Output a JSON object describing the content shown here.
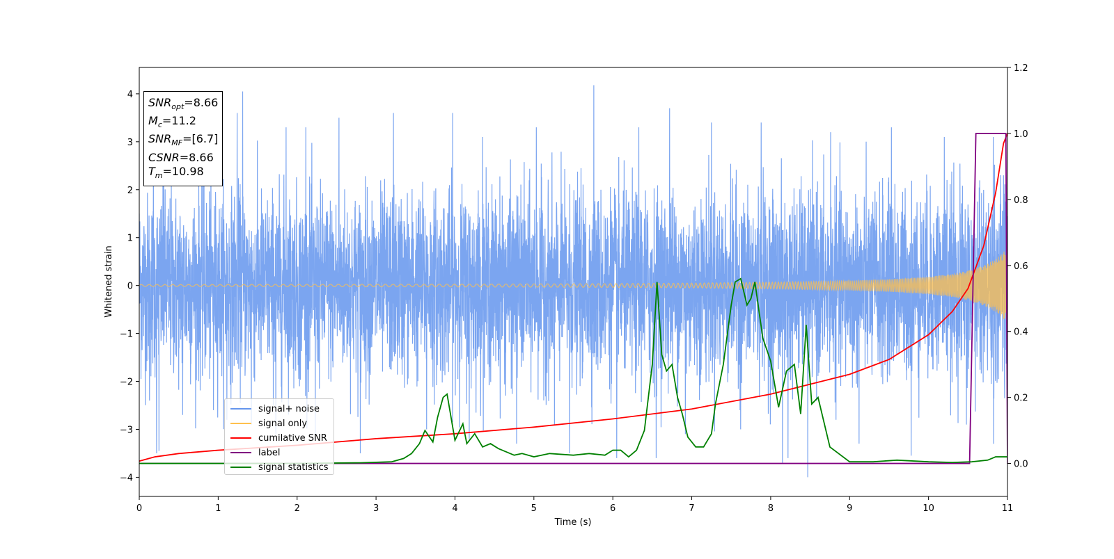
{
  "info_box": {
    "snr_opt": {
      "sym": "SNR",
      "sub": "opt",
      "val": "=8.66"
    },
    "mc": {
      "sym": "M",
      "sub": "c",
      "val": "=11.2"
    },
    "snr_mf": {
      "sym": "SNR",
      "sub": "MF",
      "val": "=[6.7]"
    },
    "csnr": {
      "sym": "CSNR",
      "val": "=8.66"
    },
    "tm": {
      "sym": "T",
      "sub": "m",
      "val": "=10.98"
    }
  },
  "legend": {
    "items": [
      {
        "label": "signal+ noise",
        "color": "#6495ed"
      },
      {
        "label": "signal only",
        "color": "#ffc04d"
      },
      {
        "label": "cumilative SNR",
        "color": "#ff0000"
      },
      {
        "label": "label",
        "color": "#800080"
      },
      {
        "label": "signal statistics",
        "color": "#008000"
      }
    ]
  },
  "chart_data": {
    "type": "line",
    "xlabel": "Time (s)",
    "ylabel": "Whitened strain",
    "xlim": [
      0,
      11
    ],
    "ylim": [
      -4.4,
      4.55
    ],
    "y2lim": [
      -0.1,
      1.2
    ],
    "xticks": [
      "0",
      "1",
      "2",
      "3",
      "4",
      "5",
      "6",
      "7",
      "8",
      "9",
      "10",
      "11"
    ],
    "yticks": [
      "4",
      "3",
      "2",
      "1",
      "0",
      "−1",
      "−2",
      "−3",
      "−4"
    ],
    "y2ticks": [
      "1.2",
      "1.0",
      "0.8",
      "0.6",
      "0.4",
      "0.2",
      "0.0"
    ],
    "grid": false,
    "legend_position": "lower-left",
    "series": [
      {
        "name": "signal+ noise",
        "axis": "left",
        "color": "#6495ed",
        "description_stats": {
          "mean": 0,
          "std": 1.0,
          "max": 4.18,
          "min": -4.0,
          "n": 5500
        },
        "x": [
          0.0,
          0.13,
          0.18,
          0.22,
          0.25,
          0.31,
          0.55,
          0.82,
          0.94,
          1.11,
          1.24,
          1.31,
          1.42,
          1.73,
          1.86,
          2.03,
          2.11,
          2.23,
          2.53,
          2.8,
          3.22,
          3.64,
          3.97,
          4.18,
          4.35,
          4.78,
          5.03,
          5.26,
          5.45,
          5.76,
          6.05,
          6.33,
          6.55,
          6.72,
          6.92,
          7.25,
          7.62,
          7.88,
          8.15,
          8.22,
          8.47,
          8.76,
          9.12,
          9.53,
          9.78,
          10.2,
          10.48,
          10.82,
          10.95,
          11.0
        ],
        "y": [
          1.5,
          -2.4,
          2.9,
          -3.5,
          -3.45,
          2.3,
          -2.7,
          2.9,
          -2.6,
          -2.8,
          3.6,
          4.05,
          -2.9,
          -3.1,
          3.3,
          -2.1,
          3.3,
          -3.1,
          3.5,
          -3.5,
          3.6,
          -3.0,
          3.6,
          -3.2,
          3.1,
          -3.3,
          3.3,
          -2.9,
          -3.5,
          4.18,
          -3.6,
          3.3,
          -3.6,
          3.7,
          -3.1,
          3.4,
          -3.0,
          3.4,
          -3.7,
          -3.6,
          -4.0,
          3.2,
          -3.3,
          3.3,
          -3.55,
          3.1,
          -2.9,
          3.1,
          2.3,
          -2.1
        ]
      },
      {
        "name": "signal only",
        "axis": "left",
        "color": "#ffc04d",
        "envelope_x": [
          0,
          2,
          4,
          6,
          7,
          8,
          9,
          9.5,
          10,
          10.3,
          10.5,
          10.7,
          10.85,
          10.95,
          11.0
        ],
        "envelope_y": [
          0.02,
          0.025,
          0.03,
          0.04,
          0.05,
          0.07,
          0.1,
          0.13,
          0.18,
          0.24,
          0.31,
          0.42,
          0.55,
          0.7,
          0.8
        ]
      },
      {
        "name": "cumilative SNR",
        "axis": "right",
        "color": "#ff0000",
        "x": [
          0,
          0.2,
          0.5,
          1,
          2,
          3,
          4,
          5,
          6,
          7,
          8,
          8.5,
          9,
          9.5,
          10,
          10.3,
          10.5,
          10.7,
          10.85,
          10.95,
          11.0
        ],
        "y": [
          0.007,
          0.02,
          0.03,
          0.04,
          0.055,
          0.075,
          0.09,
          0.11,
          0.135,
          0.165,
          0.21,
          0.24,
          0.27,
          0.315,
          0.39,
          0.46,
          0.53,
          0.66,
          0.82,
          0.97,
          1.0
        ]
      },
      {
        "name": "label",
        "axis": "right",
        "color": "#800080",
        "x": [
          0,
          10.52,
          10.6,
          10.98,
          11.0
        ],
        "y": [
          0.0,
          0.0,
          1.0,
          1.0,
          0.0
        ]
      },
      {
        "name": "signal statistics",
        "axis": "right",
        "color": "#008000",
        "x": [
          0,
          1,
          2,
          2.8,
          3.2,
          3.35,
          3.45,
          3.55,
          3.62,
          3.72,
          3.78,
          3.85,
          3.9,
          4.0,
          4.1,
          4.15,
          4.25,
          4.35,
          4.45,
          4.55,
          4.65,
          4.75,
          4.85,
          5.0,
          5.2,
          5.5,
          5.7,
          5.9,
          6.0,
          6.1,
          6.2,
          6.3,
          6.4,
          6.5,
          6.56,
          6.62,
          6.68,
          6.75,
          6.82,
          6.88,
          6.95,
          7.05,
          7.15,
          7.25,
          7.3,
          7.4,
          7.5,
          7.55,
          7.62,
          7.7,
          7.75,
          7.8,
          7.9,
          8.0,
          8.1,
          8.2,
          8.3,
          8.38,
          8.45,
          8.52,
          8.6,
          8.75,
          9.0,
          9.3,
          9.6,
          10.0,
          10.3,
          10.55,
          10.75,
          10.85,
          10.95,
          11.0
        ],
        "y": [
          0.0,
          0.0,
          0.0,
          0.002,
          0.005,
          0.015,
          0.03,
          0.06,
          0.1,
          0.065,
          0.14,
          0.2,
          0.21,
          0.07,
          0.12,
          0.06,
          0.09,
          0.05,
          0.06,
          0.045,
          0.035,
          0.025,
          0.03,
          0.02,
          0.03,
          0.025,
          0.03,
          0.025,
          0.04,
          0.04,
          0.02,
          0.04,
          0.1,
          0.3,
          0.55,
          0.33,
          0.28,
          0.3,
          0.2,
          0.15,
          0.08,
          0.05,
          0.05,
          0.09,
          0.18,
          0.3,
          0.48,
          0.55,
          0.56,
          0.48,
          0.5,
          0.55,
          0.38,
          0.31,
          0.17,
          0.28,
          0.3,
          0.15,
          0.42,
          0.18,
          0.2,
          0.05,
          0.005,
          0.005,
          0.01,
          0.005,
          0.003,
          0.005,
          0.01,
          0.02,
          0.02,
          0.02
        ]
      }
    ]
  }
}
